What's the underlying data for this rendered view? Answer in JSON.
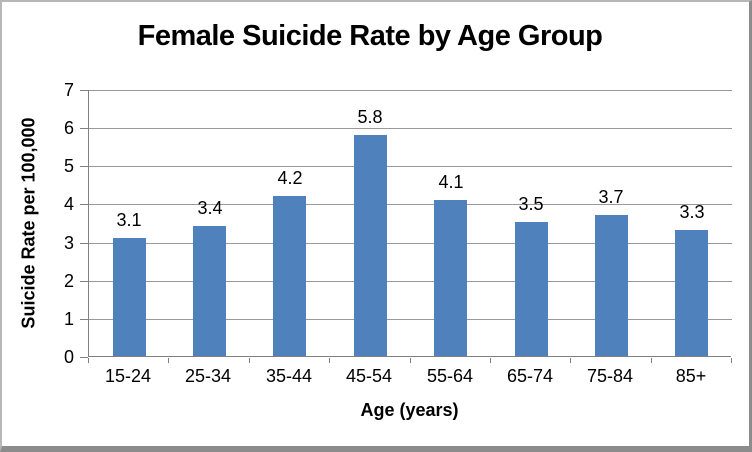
{
  "window": {
    "background": "#ffffff",
    "frame_border_color": "#8c8c8c"
  },
  "chart_data": {
    "type": "bar",
    "title": "Female Suicide Rate by Age Group",
    "xlabel": "Age (years)",
    "ylabel": "Suicide Rate per 100,000",
    "categories": [
      "15-24",
      "25-34",
      "35-44",
      "45-54",
      "55-64",
      "65-74",
      "75-84",
      "85+"
    ],
    "values": [
      3.1,
      3.4,
      4.2,
      5.8,
      4.1,
      3.5,
      3.7,
      3.3
    ],
    "data_labels": [
      "3.1",
      "3.4",
      "4.2",
      "5.8",
      "4.1",
      "3.5",
      "3.7",
      "3.3"
    ],
    "ylim": [
      0,
      7
    ],
    "yticks": [
      0,
      1,
      2,
      3,
      4,
      5,
      6,
      7
    ],
    "grid": "horizontal",
    "legend": "none",
    "bar_color": "#4F81BD",
    "gridline_color": "#999999",
    "axis_color": "#7f7f7f",
    "text_color": "#000000"
  }
}
